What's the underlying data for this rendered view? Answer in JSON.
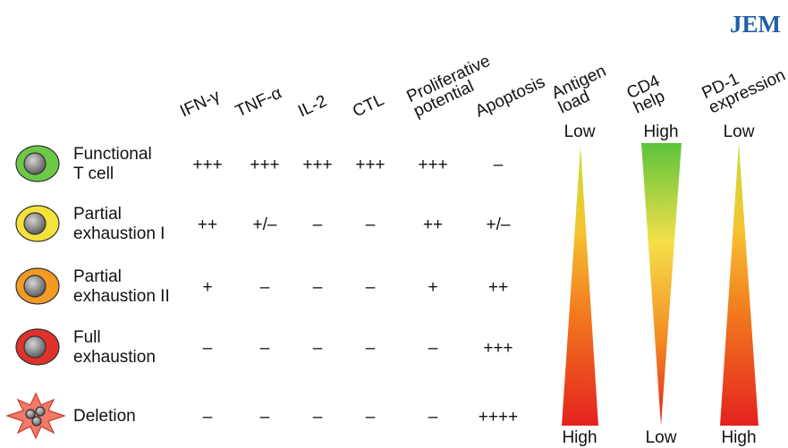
{
  "logo": "JEM",
  "columns": [
    [
      "IFN-γ"
    ],
    [
      "TNF-α"
    ],
    [
      "IL-2"
    ],
    [
      "CTL"
    ],
    [
      "Proliferative",
      "potential"
    ],
    [
      "Apoptosis"
    ]
  ],
  "rows": [
    {
      "label": [
        "Functional",
        "T cell"
      ],
      "values": [
        "+++",
        "+++",
        "+++",
        "+++",
        "+++",
        "–"
      ]
    },
    {
      "label": [
        "Partial",
        "exhaustion I"
      ],
      "values": [
        "++",
        "+/–",
        "–",
        "–",
        "++",
        "+/–"
      ]
    },
    {
      "label": [
        "Partial",
        "exhaustion II"
      ],
      "values": [
        "+",
        "–",
        "–",
        "–",
        "+",
        "++"
      ]
    },
    {
      "label": [
        "Full",
        "exhaustion"
      ],
      "values": [
        "–",
        "–",
        "–",
        "–",
        "–",
        "+++"
      ]
    },
    {
      "label": [
        "Deletion"
      ],
      "values": [
        "–",
        "–",
        "–",
        "–",
        "–",
        "++++"
      ]
    }
  ],
  "gradients": [
    {
      "title": [
        "Antigen",
        "load"
      ],
      "top": "Low",
      "bottom": "High"
    },
    {
      "title": [
        "CD4",
        "help"
      ],
      "top": "High",
      "bottom": "Low"
    },
    {
      "title": [
        "PD-1",
        "expression"
      ],
      "top": "Low",
      "bottom": "High"
    }
  ]
}
